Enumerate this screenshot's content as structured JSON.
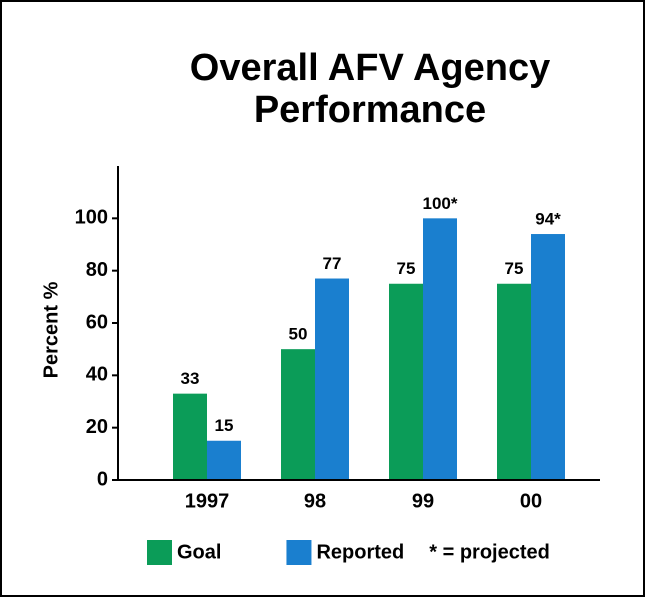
{
  "chart_data": {
    "type": "bar",
    "title": [
      "Overall AFV Agency",
      "Performance"
    ],
    "y_label": "Percent %",
    "categories": [
      "1997",
      "98",
      "99",
      "00"
    ],
    "series": [
      {
        "name": "Goal",
        "color": "#0b9c58",
        "values": [
          33,
          50,
          75,
          75
        ]
      },
      {
        "name": "Reported",
        "color": "#1a7fcf",
        "values": [
          15,
          77,
          100,
          94
        ],
        "value_labels": [
          "15",
          "77",
          "100*",
          "94*"
        ]
      }
    ],
    "annotation": "* = projected",
    "ylim": [
      0,
      120
    ],
    "yticks": [
      0,
      20,
      40,
      60,
      80,
      100
    ]
  }
}
